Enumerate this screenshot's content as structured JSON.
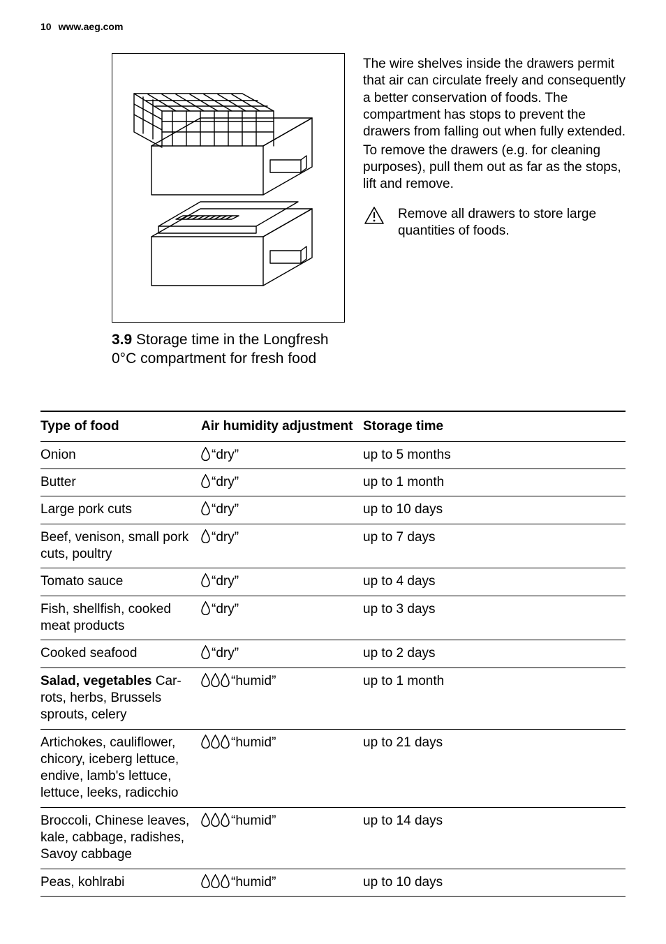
{
  "header": {
    "page_number": "10",
    "site": "www.aeg.com"
  },
  "figure": {
    "stroke": "#000000",
    "stroke_width": 1.4,
    "background": "#ffffff"
  },
  "right_column": {
    "para1": "The wire shelves inside the drawers per­mit that air can circulate freely and con­sequently a better conservation of foods. The compartment has stops to prevent the drawers from falling out when fully extended.",
    "para2": "To remove the drawers (e.g. for cleaning purposes), pull them out as far as the stops, lift and remove.",
    "warning_text": "Remove all drawers to store large quantities of foods."
  },
  "section": {
    "number": "3.9",
    "title_rest": " Storage time in the Longfresh 0°C compartment for fresh food"
  },
  "table": {
    "headers": {
      "food": "Type of food",
      "humidity": "Air humidity adjust­ment",
      "time": "Storage time"
    },
    "humidity_labels": {
      "dry": "“dry”",
      "humid": "“humid”"
    },
    "drop_icon": {
      "stroke": "#000000",
      "fill": "#ffffff"
    },
    "rows": [
      {
        "food": "Onion",
        "drops": 1,
        "mode": "dry",
        "time": "up to 5 months"
      },
      {
        "food": "Butter",
        "drops": 1,
        "mode": "dry",
        "time": "up to 1 month"
      },
      {
        "food": "Large pork cuts",
        "drops": 1,
        "mode": "dry",
        "time": "up to 10 days"
      },
      {
        "food": "Beef, venison, small pork cuts, poultry",
        "drops": 1,
        "mode": "dry",
        "time": "up to 7 days"
      },
      {
        "food": "Tomato sauce",
        "drops": 1,
        "mode": "dry",
        "time": "up to 4 days"
      },
      {
        "food": "Fish, shellfish, cooked meat products",
        "drops": 1,
        "mode": "dry",
        "time": "up to 3 days"
      },
      {
        "food": "Cooked seafood",
        "drops": 1,
        "mode": "dry",
        "time": "up to 2 days"
      },
      {
        "food_prefix_bold": "Salad, vegetables",
        "food_rest": " Car­rots, herbs, Brussels sprouts, celery",
        "drops": 3,
        "mode": "humid",
        "time": "up to 1 month"
      },
      {
        "food": "Artichokes, cauliflower, chicory, iceberg lettuce, endive, lamb's lettuce, lettuce, leeks, radicchio",
        "drops": 3,
        "mode": "humid",
        "time": "up to 21 days"
      },
      {
        "food": "Broccoli, Chinese leaves, kale, cabbage, radishes, Savoy cab­bage",
        "drops": 3,
        "mode": "humid",
        "time": "up to 14 days"
      },
      {
        "food": "Peas, kohlrabi",
        "drops": 3,
        "mode": "humid",
        "time": "up to 10 days"
      }
    ]
  }
}
